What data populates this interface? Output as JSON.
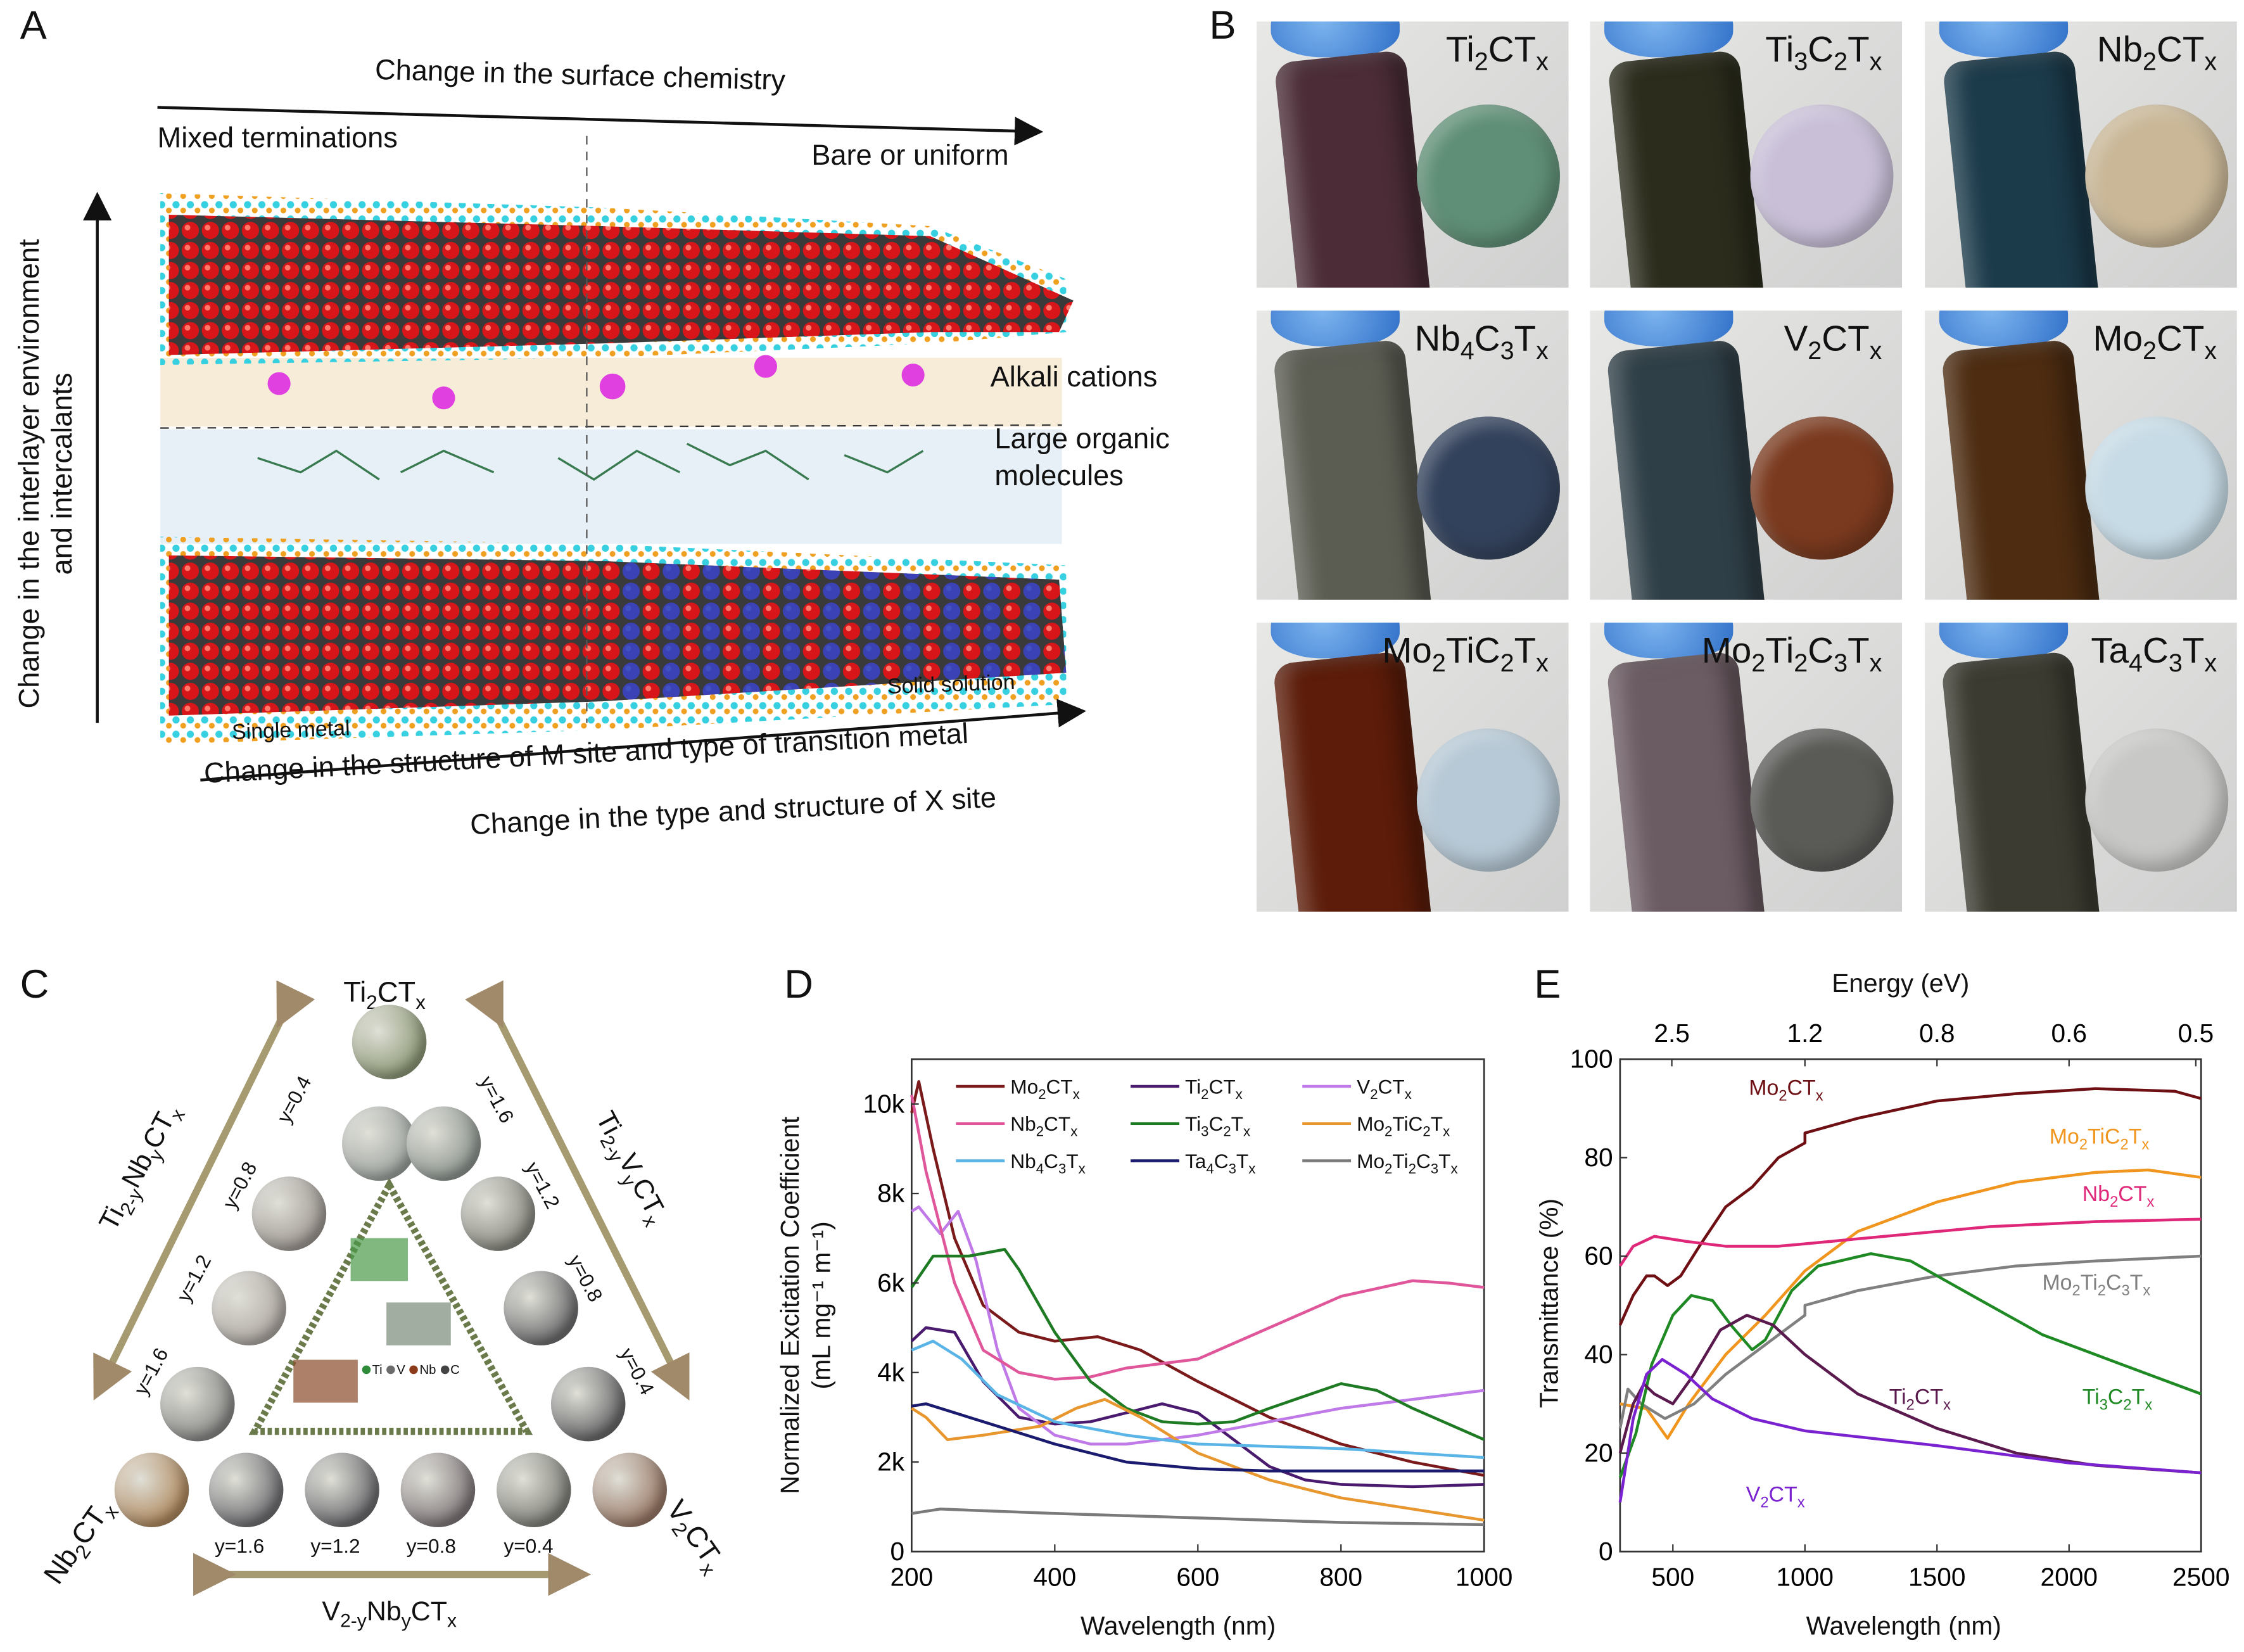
{
  "panels": {
    "a": "A",
    "b": "B",
    "c": "C",
    "d": "D",
    "e": "E"
  },
  "panel_a": {
    "top_axis": "Change in the surface chemistry",
    "mixed": "Mixed terminations",
    "bare": "Bare or uniform",
    "vertical_axis_line1": "Change in the interlayer environment",
    "vertical_axis_line2": "and intercalants",
    "alkali": "Alkali cations",
    "organic_line1": "Large organic",
    "organic_line2": "molecules",
    "single_metal": "Single metal",
    "solid_solution": "Solid solution",
    "bottom_axis_1": "Change in the structure of M site and type of transition metal",
    "bottom_axis_2": "Change in the type and structure of X site"
  },
  "panel_b": {
    "samples": [
      {
        "label": "Ti2CTx",
        "vial": "#4b2c37",
        "disc": "#5f8f76"
      },
      {
        "label": "Ti3C2Tx",
        "vial": "#2b2c1c",
        "disc": "#c9c0d8"
      },
      {
        "label": "Nb2CTx",
        "vial": "#1b3a4a",
        "disc": "#c9b797"
      },
      {
        "label": "Nb4C3Tx",
        "vial": "#5b5c52",
        "disc": "#33425c"
      },
      {
        "label": "V2CTx",
        "vial": "#2f3f47",
        "disc": "#7a3a1f"
      },
      {
        "label": "Mo2CTx",
        "vial": "#4d2c11",
        "disc": "#c7dbe6"
      },
      {
        "label": "Mo2TiC2Tx",
        "vial": "#5c1c09",
        "disc": "#b7c9d6"
      },
      {
        "label": "Mo2Ti2C3Tx",
        "vial": "#6b5b62",
        "disc": "#5a5a57"
      },
      {
        "label": "Ta4C3Tx",
        "vial": "#3b3b31",
        "disc": "#c8c8c6"
      }
    ]
  },
  "panel_c": {
    "top": "Ti2CTx",
    "left_vertex": "Nb2CTx",
    "right_vertex": "V2CTx",
    "left_side": "Ti2-yNbyCTx",
    "right_side": "Ti2-yVyCTx",
    "bottom_side": "V2-yNbyCTx",
    "left_y": [
      "y=0.4",
      "y=0.8",
      "y=1.2",
      "y=1.6"
    ],
    "right_y": [
      "y=1.6",
      "y=1.2",
      "y=0.8",
      "y=0.4"
    ],
    "bottom_y": [
      "y=1.6",
      "y=1.2",
      "y=0.8",
      "y=0.4"
    ],
    "atom_legend": [
      "Ti",
      "V",
      "Nb",
      "C"
    ],
    "atom_colors": [
      "#2e8b3a",
      "#6b6b6b",
      "#8b3a1a",
      "#444444"
    ]
  },
  "chart_data": [
    {
      "type": "line",
      "panel": "D",
      "xlabel": "Wavelength (nm)",
      "ylabel": "Normalized Excitation Coefficient",
      "ylabel_unit": "(mL mg⁻¹ m⁻¹)",
      "xlim": [
        200,
        1000
      ],
      "ylim": [
        0,
        11000
      ],
      "xticks": [
        200,
        400,
        600,
        800,
        1000
      ],
      "xtick_labels": [
        "200",
        "400",
        "600",
        "800",
        "1000"
      ],
      "yticks": [
        0,
        2000,
        4000,
        6000,
        8000,
        10000
      ],
      "ytick_labels": [
        "0",
        "2k",
        "4k",
        "6k",
        "8k",
        "10k"
      ],
      "legend_placement": "top",
      "series": [
        {
          "name": "Mo2CTx",
          "color": "#7a1a1a",
          "points": [
            [
              200,
              9800
            ],
            [
              210,
              10500
            ],
            [
              230,
              9000
            ],
            [
              260,
              7000
            ],
            [
              300,
              5500
            ],
            [
              350,
              4900
            ],
            [
              400,
              4700
            ],
            [
              460,
              4800
            ],
            [
              520,
              4500
            ],
            [
              600,
              3800
            ],
            [
              700,
              3000
            ],
            [
              800,
              2400
            ],
            [
              900,
              2000
            ],
            [
              1000,
              1700
            ]
          ]
        },
        {
          "name": "Ti2CTx",
          "color": "#4a1a6e",
          "points": [
            [
              200,
              4700
            ],
            [
              220,
              5000
            ],
            [
              260,
              4900
            ],
            [
              300,
              3800
            ],
            [
              350,
              3000
            ],
            [
              400,
              2850
            ],
            [
              450,
              2900
            ],
            [
              500,
              3100
            ],
            [
              550,
              3300
            ],
            [
              600,
              3100
            ],
            [
              650,
              2500
            ],
            [
              700,
              1900
            ],
            [
              750,
              1600
            ],
            [
              800,
              1500
            ],
            [
              900,
              1450
            ],
            [
              1000,
              1500
            ]
          ]
        },
        {
          "name": "V2CTx",
          "color": "#c07ae8",
          "points": [
            [
              200,
              7600
            ],
            [
              210,
              7700
            ],
            [
              240,
              7100
            ],
            [
              265,
              7600
            ],
            [
              290,
              6500
            ],
            [
              320,
              4500
            ],
            [
              350,
              3200
            ],
            [
              400,
              2600
            ],
            [
              450,
              2400
            ],
            [
              500,
              2400
            ],
            [
              600,
              2600
            ],
            [
              700,
              2900
            ],
            [
              800,
              3200
            ],
            [
              900,
              3400
            ],
            [
              1000,
              3600
            ]
          ]
        },
        {
          "name": "Nb2CTx",
          "color": "#e0569a",
          "points": [
            [
              200,
              10200
            ],
            [
              220,
              8500
            ],
            [
              260,
              6000
            ],
            [
              300,
              4500
            ],
            [
              350,
              4000
            ],
            [
              400,
              3850
            ],
            [
              450,
              3900
            ],
            [
              500,
              4100
            ],
            [
              600,
              4300
            ],
            [
              700,
              5000
            ],
            [
              800,
              5700
            ],
            [
              900,
              6050
            ],
            [
              950,
              6000
            ],
            [
              1000,
              5900
            ]
          ]
        },
        {
          "name": "Ti3C2Tx",
          "color": "#1f7a24",
          "points": [
            [
              200,
              5900
            ],
            [
              230,
              6600
            ],
            [
              280,
              6600
            ],
            [
              330,
              6750
            ],
            [
              350,
              6300
            ],
            [
              400,
              4900
            ],
            [
              450,
              3800
            ],
            [
              500,
              3200
            ],
            [
              550,
              2900
            ],
            [
              600,
              2850
            ],
            [
              650,
              2900
            ],
            [
              700,
              3200
            ],
            [
              800,
              3750
            ],
            [
              850,
              3600
            ],
            [
              900,
              3200
            ],
            [
              1000,
              2500
            ]
          ]
        },
        {
          "name": "Mo2TiC2Tx",
          "color": "#e8962e",
          "points": [
            [
              200,
              3200
            ],
            [
              220,
              3000
            ],
            [
              250,
              2500
            ],
            [
              300,
              2600
            ],
            [
              380,
              2800
            ],
            [
              430,
              3200
            ],
            [
              470,
              3400
            ],
            [
              520,
              3000
            ],
            [
              600,
              2200
            ],
            [
              700,
              1600
            ],
            [
              800,
              1200
            ],
            [
              900,
              950
            ],
            [
              1000,
              700
            ]
          ]
        },
        {
          "name": "Nb4C3Tx",
          "color": "#5ab4e6",
          "points": [
            [
              200,
              4500
            ],
            [
              230,
              4700
            ],
            [
              270,
              4300
            ],
            [
              320,
              3500
            ],
            [
              400,
              2900
            ],
            [
              500,
              2600
            ],
            [
              600,
              2400
            ],
            [
              700,
              2350
            ],
            [
              800,
              2300
            ],
            [
              900,
              2200
            ],
            [
              1000,
              2100
            ]
          ]
        },
        {
          "name": "Ta4C3Tx",
          "color": "#1a1a6e",
          "points": [
            [
              200,
              3250
            ],
            [
              220,
              3300
            ],
            [
              300,
              2900
            ],
            [
              400,
              2400
            ],
            [
              500,
              2000
            ],
            [
              600,
              1850
            ],
            [
              700,
              1800
            ],
            [
              800,
              1800
            ],
            [
              1000,
              1800
            ]
          ]
        },
        {
          "name": "Mo2Ti2C3Tx",
          "color": "#7a7a7a",
          "points": [
            [
              200,
              850
            ],
            [
              240,
              950
            ],
            [
              400,
              850
            ],
            [
              600,
              750
            ],
            [
              800,
              650
            ],
            [
              1000,
              600
            ]
          ]
        }
      ]
    },
    {
      "type": "line",
      "panel": "E",
      "xlabel": "Wavelength (nm)",
      "ylabel": "Transmittance (%)",
      "top_xlabel": "Energy (eV)",
      "xlim": [
        300,
        2500
      ],
      "ylim": [
        0,
        100
      ],
      "xticks": [
        500,
        1000,
        1500,
        2000,
        2500
      ],
      "xtick_labels": [
        "500",
        "1000",
        "1500",
        "2000",
        "2500"
      ],
      "yticks": [
        0,
        20,
        40,
        60,
        80,
        100
      ],
      "ytick_labels": [
        "0",
        "20",
        "40",
        "60",
        "80",
        "100"
      ],
      "top_tick_labels": [
        "2.5",
        "1.2",
        "0.8",
        "0.6",
        "0.5"
      ],
      "legend_placement": "inline labels",
      "series": [
        {
          "name": "Mo2CTx",
          "color": "#6e0f14",
          "points": [
            [
              300,
              46
            ],
            [
              350,
              52
            ],
            [
              400,
              56
            ],
            [
              430,
              56
            ],
            [
              480,
              54
            ],
            [
              530,
              56
            ],
            [
              600,
              62
            ],
            [
              700,
              70
            ],
            [
              800,
              74
            ],
            [
              900,
              80
            ],
            [
              1000,
              83
            ],
            [
              1000,
              85
            ],
            [
              1200,
              88
            ],
            [
              1500,
              91.5
            ],
            [
              1800,
              93
            ],
            [
              2100,
              94
            ],
            [
              2400,
              93.5
            ],
            [
              2500,
              92
            ]
          ]
        },
        {
          "name": "Mo2TiC2Tx",
          "color": "#f0951e",
          "points": [
            [
              300,
              30
            ],
            [
              400,
              29
            ],
            [
              480,
              23
            ],
            [
              560,
              30
            ],
            [
              700,
              40
            ],
            [
              850,
              48
            ],
            [
              1000,
              57
            ],
            [
              1200,
              65
            ],
            [
              1500,
              71
            ],
            [
              1800,
              75
            ],
            [
              2100,
              77
            ],
            [
              2300,
              77.5
            ],
            [
              2500,
              76
            ]
          ]
        },
        {
          "name": "Nb2CTx",
          "color": "#e0287a",
          "points": [
            [
              300,
              58
            ],
            [
              350,
              62
            ],
            [
              430,
              64
            ],
            [
              550,
              63
            ],
            [
              700,
              62
            ],
            [
              900,
              62
            ],
            [
              1000,
              62.5
            ],
            [
              1300,
              64
            ],
            [
              1700,
              66
            ],
            [
              2100,
              67
            ],
            [
              2500,
              67.5
            ]
          ]
        },
        {
          "name": "Mo2Ti2C3Tx",
          "color": "#808080",
          "points": [
            [
              300,
              25
            ],
            [
              330,
              33
            ],
            [
              380,
              30
            ],
            [
              470,
              27
            ],
            [
              580,
              30
            ],
            [
              700,
              36
            ],
            [
              850,
              42
            ],
            [
              1000,
              48
            ],
            [
              1000,
              50
            ],
            [
              1200,
              53
            ],
            [
              1500,
              56
            ],
            [
              1800,
              58
            ],
            [
              2100,
              59
            ],
            [
              2500,
              60
            ]
          ]
        },
        {
          "name": "Ti3C2Tx",
          "color": "#1f8a24",
          "points": [
            [
              300,
              15
            ],
            [
              360,
              24
            ],
            [
              420,
              38
            ],
            [
              500,
              48
            ],
            [
              570,
              52
            ],
            [
              650,
              51
            ],
            [
              720,
              46
            ],
            [
              800,
              41
            ],
            [
              850,
              43
            ],
            [
              950,
              53
            ],
            [
              1050,
              58
            ],
            [
              1250,
              60.5
            ],
            [
              1400,
              59
            ],
            [
              1600,
              53
            ],
            [
              1900,
              44
            ],
            [
              2200,
              38
            ],
            [
              2500,
              32
            ]
          ]
        },
        {
          "name": "Ti2CTx",
          "color": "#5a1a4e",
          "points": [
            [
              300,
              20
            ],
            [
              350,
              30
            ],
            [
              390,
              34
            ],
            [
              430,
              32
            ],
            [
              500,
              30
            ],
            [
              580,
              36
            ],
            [
              680,
              45
            ],
            [
              780,
              48
            ],
            [
              880,
              46
            ],
            [
              1000,
              40
            ],
            [
              1200,
              32
            ],
            [
              1500,
              25
            ],
            [
              1800,
              20
            ],
            [
              2100,
              17.5
            ],
            [
              2500,
              16
            ]
          ]
        },
        {
          "name": "V2CTx",
          "color": "#7a22d0",
          "points": [
            [
              300,
              10
            ],
            [
              350,
              27
            ],
            [
              400,
              36
            ],
            [
              460,
              39
            ],
            [
              550,
              36
            ],
            [
              650,
              31
            ],
            [
              800,
              27
            ],
            [
              1000,
              24.5
            ],
            [
              1500,
              21.5
            ],
            [
              2000,
              18
            ],
            [
              2500,
              16
            ]
          ]
        }
      ]
    }
  ]
}
